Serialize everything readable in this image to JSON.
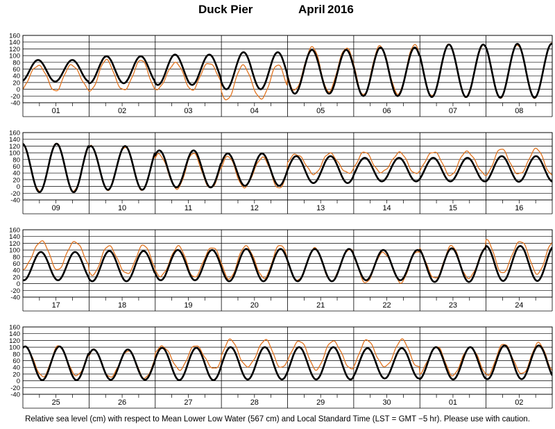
{
  "header": {
    "site": "Duck Pier",
    "month": "April",
    "year": "2016"
  },
  "footer": {
    "note": "Relative sea level (cm) with respect to Mean Lower Low Water (567 cm) and Local Standard Time (LST = GMT −5 hr). Please use with caution."
  },
  "colors": {
    "predicted": "#000000",
    "observed": "#e0731f",
    "grid": "#000000",
    "background": "#ffffff"
  },
  "chart_data": [
    {
      "type": "line",
      "days": [
        "01",
        "02",
        "03",
        "04",
        "05",
        "06",
        "07",
        "08"
      ],
      "ylim": [
        -40,
        160
      ],
      "yticks": [
        -40,
        -20,
        0,
        20,
        40,
        60,
        80,
        100,
        120,
        140,
        160
      ],
      "grid": true,
      "series": [
        {
          "key": "predicted",
          "color": "#000000",
          "mean": [
            55,
            58,
            58,
            55,
            52,
            52,
            55,
            55
          ],
          "amp": [
            32,
            40,
            45,
            55,
            65,
            72,
            78,
            80
          ]
        },
        {
          "key": "observed",
          "color": "#e0731f",
          "mean": [
            35,
            40,
            40,
            20,
            60,
            58,
            55,
            55
          ],
          "amp": [
            38,
            45,
            40,
            50,
            65,
            72,
            78,
            80
          ]
        }
      ]
    },
    {
      "type": "line",
      "days": [
        "09",
        "10",
        "11",
        "12",
        "13",
        "14",
        "15",
        "16"
      ],
      "ylim": [
        -40,
        160
      ],
      "yticks": [
        -40,
        -20,
        0,
        20,
        40,
        60,
        80,
        100,
        120,
        140,
        160
      ],
      "grid": true,
      "series": [
        {
          "key": "predicted",
          "color": "#000000",
          "mean": [
            55,
            55,
            52,
            50,
            50,
            50,
            50,
            52
          ],
          "amp": [
            72,
            65,
            55,
            48,
            40,
            35,
            35,
            38
          ]
        },
        {
          "key": "observed",
          "color": "#e0731f",
          "mean": [
            55,
            55,
            45,
            42,
            68,
            70,
            70,
            72
          ],
          "amp": [
            72,
            65,
            52,
            45,
            30,
            30,
            35,
            38
          ]
        }
      ]
    },
    {
      "type": "line",
      "days": [
        "17",
        "18",
        "19",
        "20",
        "21",
        "22",
        "23",
        "24"
      ],
      "ylim": [
        -40,
        160
      ],
      "yticks": [
        -40,
        -20,
        0,
        20,
        40,
        60,
        80,
        100,
        120,
        140,
        160
      ],
      "grid": true,
      "series": [
        {
          "key": "predicted",
          "color": "#000000",
          "mean": [
            52,
            52,
            55,
            55,
            55,
            55,
            55,
            60
          ],
          "amp": [
            42,
            45,
            45,
            48,
            48,
            45,
            50,
            52
          ]
        },
        {
          "key": "observed",
          "color": "#e0731f",
          "mean": [
            85,
            70,
            65,
            65,
            55,
            50,
            62,
            80
          ],
          "amp": [
            42,
            42,
            45,
            48,
            48,
            45,
            48,
            48
          ]
        }
      ]
    },
    {
      "type": "line",
      "days": [
        "25",
        "26",
        "27",
        "28",
        "29",
        "30",
        "01",
        "02"
      ],
      "ylim": [
        -40,
        160
      ],
      "yticks": [
        -40,
        -20,
        0,
        20,
        40,
        60,
        80,
        100,
        120,
        140,
        160
      ],
      "grid": true,
      "series": [
        {
          "key": "predicted",
          "color": "#000000",
          "mean": [
            52,
            48,
            50,
            52,
            52,
            52,
            52,
            55
          ],
          "amp": [
            50,
            45,
            48,
            48,
            48,
            45,
            48,
            50
          ]
        },
        {
          "key": "observed",
          "color": "#e0731f",
          "mean": [
            58,
            50,
            70,
            80,
            78,
            80,
            60,
            65
          ],
          "amp": [
            45,
            40,
            35,
            40,
            42,
            40,
            42,
            45
          ]
        }
      ]
    }
  ]
}
